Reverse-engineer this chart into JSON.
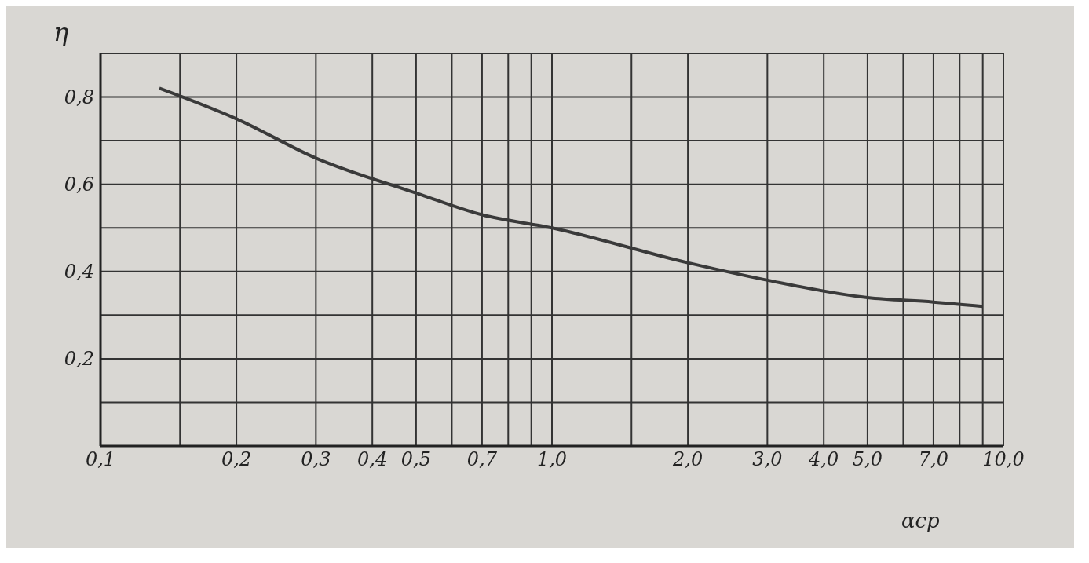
{
  "chart_data": {
    "type": "line",
    "ylabel": "η",
    "xlabel": "αср",
    "log": "x",
    "grid": true,
    "marker": "none",
    "line_style": "solid",
    "legend": false,
    "x": [
      0.135,
      0.2,
      0.3,
      0.5,
      0.7,
      1.0,
      2.0,
      3.0,
      5.0,
      7.0,
      9.0
    ],
    "series": [
      {
        "color": "#3a3a3a",
        "values": [
          0.82,
          0.75,
          0.66,
          0.58,
          0.53,
          0.5,
          0.42,
          0.38,
          0.34,
          0.33,
          0.32
        ]
      }
    ],
    "xlim": [
      0.1,
      10
    ],
    "xticks": [
      {
        "value": 0.1,
        "label": "0,1"
      },
      {
        "value": 0.15,
        "label": null
      },
      {
        "value": 0.2,
        "label": "0,2"
      },
      {
        "value": 0.3,
        "label": "0,3"
      },
      {
        "value": 0.4,
        "label": "0,4"
      },
      {
        "value": 0.5,
        "label": "0,5"
      },
      {
        "value": 0.6,
        "label": null
      },
      {
        "value": 0.7,
        "label": "0,7"
      },
      {
        "value": 0.8,
        "label": null
      },
      {
        "value": 0.9,
        "label": null
      },
      {
        "value": 1.0,
        "label": "1,0"
      },
      {
        "value": 1.5,
        "label": null
      },
      {
        "value": 2.0,
        "label": "2,0"
      },
      {
        "value": 3.0,
        "label": "3,0"
      },
      {
        "value": 4.0,
        "label": "4,0"
      },
      {
        "value": 5.0,
        "label": "5,0"
      },
      {
        "value": 6.0,
        "label": null
      },
      {
        "value": 7.0,
        "label": "7,0"
      },
      {
        "value": 8.0,
        "label": null
      },
      {
        "value": 9.0,
        "label": null
      },
      {
        "value": 10.0,
        "label": "10,0"
      }
    ],
    "ylim": [
      0,
      0.9
    ],
    "yticks": [
      {
        "value": 0,
        "label": null
      },
      {
        "value": 0.1,
        "label": null
      },
      {
        "value": 0.2,
        "label": "0,2"
      },
      {
        "value": 0.3,
        "label": null
      },
      {
        "value": 0.4,
        "label": "0,4"
      },
      {
        "value": 0.5,
        "label": null
      },
      {
        "value": 0.6,
        "label": "0,6"
      },
      {
        "value": 0.7,
        "label": null
      },
      {
        "value": 0.8,
        "label": "0,8"
      },
      {
        "value": 0.9,
        "label": null
      }
    ]
  }
}
